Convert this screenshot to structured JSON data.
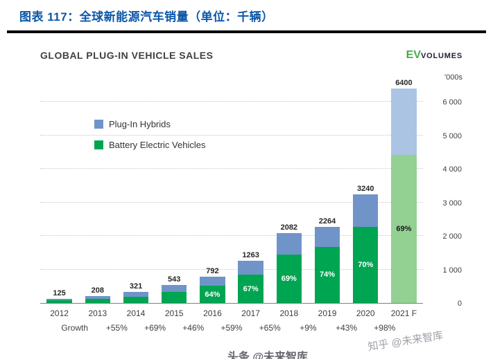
{
  "page": {
    "title": "图表 117：全球新能源汽车销量（单位：千辆）",
    "watermark_right": "知乎 @未来智库",
    "watermark_bottom": "头条 @未来智库"
  },
  "chart": {
    "title": "GLOBAL PLUG-IN VEHICLE SALES",
    "logo": {
      "ev": "EV",
      "volumes": "VOLUMES"
    },
    "unit_label": "'000s",
    "growth_label": "Growth"
  },
  "chart_data": {
    "type": "bar",
    "stacked": true,
    "title": "GLOBAL PLUG-IN VEHICLE SALES",
    "ylabel": "'000s",
    "categories": [
      "2012",
      "2013",
      "2014",
      "2015",
      "2016",
      "2017",
      "2018",
      "2019",
      "2020",
      "2021 F"
    ],
    "totals": [
      125,
      208,
      321,
      543,
      792,
      1263,
      2082,
      2264,
      3240,
      6400
    ],
    "series": [
      {
        "name": "Battery Electric Vehicles",
        "color": "#00a551",
        "forecast_color": "#92d192",
        "values": [
          78,
          133,
          196,
          331,
          507,
          846,
          1437,
          1675,
          2268,
          4416
        ]
      },
      {
        "name": "Plug-In Hybrids",
        "color": "#7094c8",
        "forecast_color": "#abc4e4",
        "values": [
          47,
          75,
          125,
          212,
          285,
          417,
          645,
          589,
          972,
          1984
        ]
      }
    ],
    "bev_share_labels": [
      null,
      null,
      null,
      null,
      "64%",
      "67%",
      "69%",
      "74%",
      "70%",
      "69%"
    ],
    "growth": [
      "+55%",
      "+69%",
      "+46%",
      "+59%",
      "+65%",
      "+9%",
      "+43%",
      "+98%"
    ],
    "forecast_index": 9,
    "ylim": [
      0,
      6500
    ],
    "yticks": [
      0,
      1000,
      2000,
      3000,
      4000,
      5000,
      6000
    ],
    "ytick_labels": [
      "0",
      "1 000",
      "2 000",
      "3 000",
      "4 000",
      "5 000",
      "6 000"
    ],
    "legend": [
      {
        "label": "Plug-In Hybrids",
        "color": "#7094c8"
      },
      {
        "label": "Battery Electric Vehicles",
        "color": "#00a551"
      }
    ],
    "legend_position": "upper-left",
    "grid": "horizontal-dotted"
  }
}
